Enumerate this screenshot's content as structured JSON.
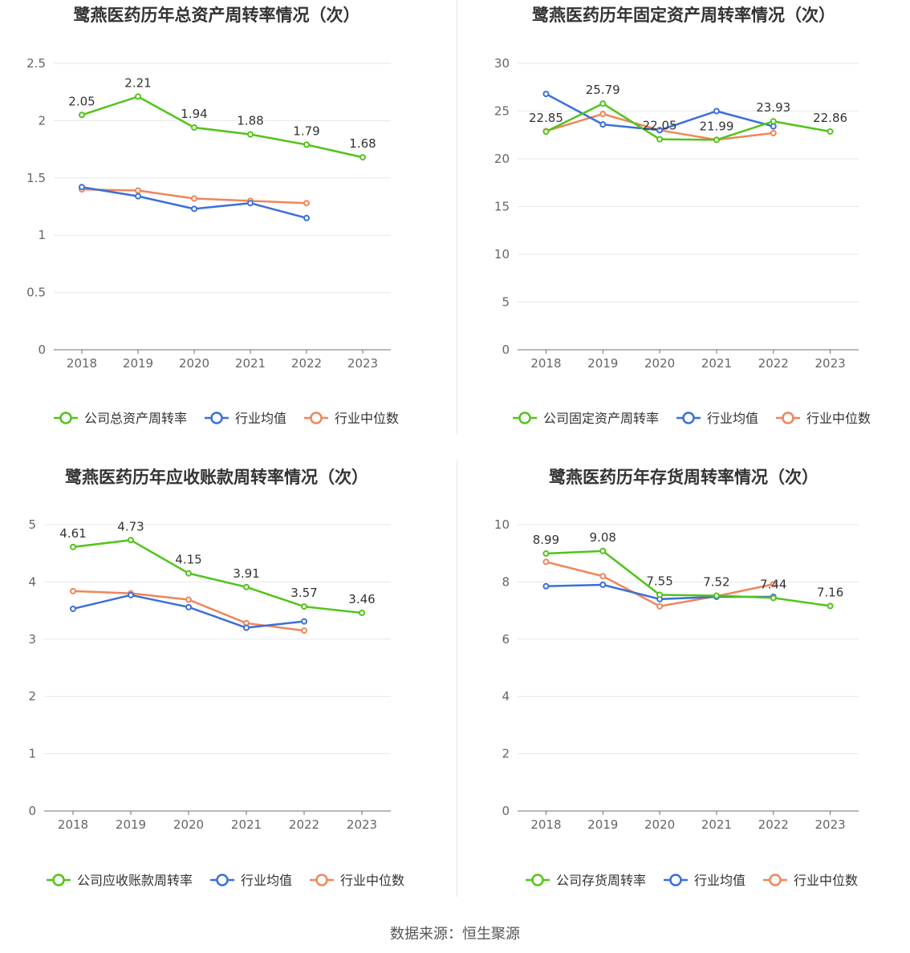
{
  "source_text": "数据来源：恒生聚源",
  "colors": {
    "company": "#52c41a",
    "industry_avg": "#3a6fd8",
    "industry_median": "#f0855c"
  },
  "chart_data": [
    {
      "type": "line",
      "title": "鹭燕医药历年总资产周转率情况（次）",
      "x": [
        "2018",
        "2019",
        "2020",
        "2021",
        "2022",
        "2023"
      ],
      "ylim": [
        0,
        2.5
      ],
      "yticks": [
        "0",
        "0.5",
        "1",
        "1.5",
        "2",
        "2.5"
      ],
      "legend_position": "bottom",
      "series": [
        {
          "name": "公司总资产周转率",
          "values": [
            2.05,
            2.21,
            1.94,
            1.88,
            1.79,
            1.68
          ],
          "labels": [
            "2.05",
            "2.21",
            "1.94",
            "1.88",
            "1.79",
            "1.68"
          ]
        },
        {
          "name": "行业均值",
          "values": [
            1.42,
            1.34,
            1.23,
            1.28,
            1.15,
            null
          ]
        },
        {
          "name": "行业中位数",
          "values": [
            1.4,
            1.39,
            1.32,
            1.3,
            1.28,
            null
          ]
        }
      ]
    },
    {
      "type": "line",
      "title": "鹭燕医药历年固定资产周转率情况（次）",
      "x": [
        "2018",
        "2019",
        "2020",
        "2021",
        "2022",
        "2023"
      ],
      "ylim": [
        0,
        30
      ],
      "yticks": [
        "0",
        "5",
        "10",
        "15",
        "20",
        "25",
        "30"
      ],
      "legend_position": "bottom",
      "series": [
        {
          "name": "公司固定资产周转率",
          "values": [
            22.85,
            25.79,
            22.05,
            21.99,
            23.93,
            22.86
          ],
          "labels": [
            "22.85",
            "25.79",
            "22.05",
            "21.99",
            "23.93",
            "22.86"
          ]
        },
        {
          "name": "行业均值",
          "values": [
            26.8,
            23.6,
            23.0,
            25.0,
            23.4,
            null
          ]
        },
        {
          "name": "行业中位数",
          "values": [
            22.9,
            24.7,
            23.0,
            22.0,
            22.7,
            null
          ]
        }
      ]
    },
    {
      "type": "line",
      "title": "鹭燕医药历年应收账款周转率情况（次）",
      "x": [
        "2018",
        "2019",
        "2020",
        "2021",
        "2022",
        "2023"
      ],
      "ylim": [
        0,
        5
      ],
      "yticks": [
        "0",
        "1",
        "2",
        "3",
        "4",
        "5"
      ],
      "legend_position": "bottom",
      "series": [
        {
          "name": "公司应收账款周转率",
          "values": [
            4.61,
            4.73,
            4.15,
            3.91,
            3.57,
            3.46
          ],
          "labels": [
            "4.61",
            "4.73",
            "4.15",
            "3.91",
            "3.57",
            "3.46"
          ]
        },
        {
          "name": "行业均值",
          "values": [
            3.53,
            3.77,
            3.56,
            3.2,
            3.31,
            null
          ]
        },
        {
          "name": "行业中位数",
          "values": [
            3.84,
            3.8,
            3.69,
            3.28,
            3.15,
            null
          ]
        }
      ]
    },
    {
      "type": "line",
      "title": "鹭燕医药历年存货周转率情况（次）",
      "x": [
        "2018",
        "2019",
        "2020",
        "2021",
        "2022",
        "2023"
      ],
      "ylim": [
        0,
        10
      ],
      "yticks": [
        "0",
        "2",
        "4",
        "6",
        "8",
        "10"
      ],
      "legend_position": "bottom",
      "series": [
        {
          "name": "公司存货周转率",
          "values": [
            8.99,
            9.08,
            7.55,
            7.52,
            7.44,
            7.16
          ],
          "labels": [
            "8.99",
            "9.08",
            "7.55",
            "7.52",
            "7.44",
            "7.16"
          ]
        },
        {
          "name": "行业均值",
          "values": [
            7.85,
            7.9,
            7.4,
            7.48,
            7.48,
            null
          ]
        },
        {
          "name": "行业中位数",
          "values": [
            8.7,
            8.2,
            7.15,
            7.5,
            7.92,
            null
          ]
        }
      ]
    }
  ]
}
